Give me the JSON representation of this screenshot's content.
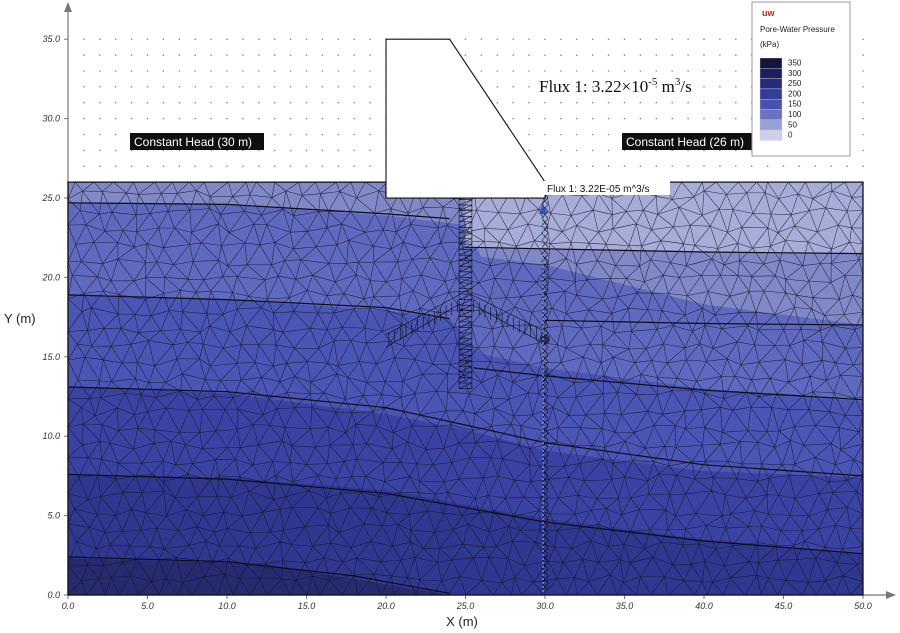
{
  "axes": {
    "x_label": "X (m)",
    "y_label": "Y (m)",
    "x_ticks": [
      "0.0",
      "5.0",
      "10.0",
      "15.0",
      "20.0",
      "25.0",
      "30.0",
      "35.0",
      "40.0",
      "45.0",
      "50.0"
    ],
    "y_ticks": [
      "0.0",
      "5.0",
      "10.0",
      "15.0",
      "20.0",
      "25.0",
      "30.0",
      "35.0"
    ],
    "x_range": [
      0,
      50
    ],
    "y_range": [
      0,
      35
    ]
  },
  "labels": {
    "left_boundary": "Constant Head (30 m)",
    "right_boundary": "Constant Head (26 m)",
    "flux_small": "Flux 1: 3.22E-05 m^3/s",
    "flux_big_prefix": "Flux 1: 3.22×10",
    "flux_big_exp": "-5",
    "flux_big_unit": " m",
    "flux_big_unit_exp": "3",
    "flux_big_suffix": "/s"
  },
  "legend": {
    "logo": "uw",
    "title": "Pore-Water Pressure",
    "unit": "(kPa)",
    "entries": [
      {
        "label": "350",
        "color": "#14143c"
      },
      {
        "label": "300",
        "color": "#1d1f5c"
      },
      {
        "label": "250",
        "color": "#262b7c"
      },
      {
        "label": "200",
        "color": "#343c98"
      },
      {
        "label": "150",
        "color": "#4652ad"
      },
      {
        "label": "100",
        "color": "#6a72c0"
      },
      {
        "label": "50",
        "color": "#9aa0d4"
      },
      {
        "label": "0",
        "color": "#cdd0ea"
      }
    ]
  },
  "colors": {
    "mesh": "#151522",
    "bands": [
      "#262b70",
      "#2f3790",
      "#3a43a4",
      "#4a55b5",
      "#5f69bf",
      "#8088c8",
      "#a7acd9"
    ]
  }
}
